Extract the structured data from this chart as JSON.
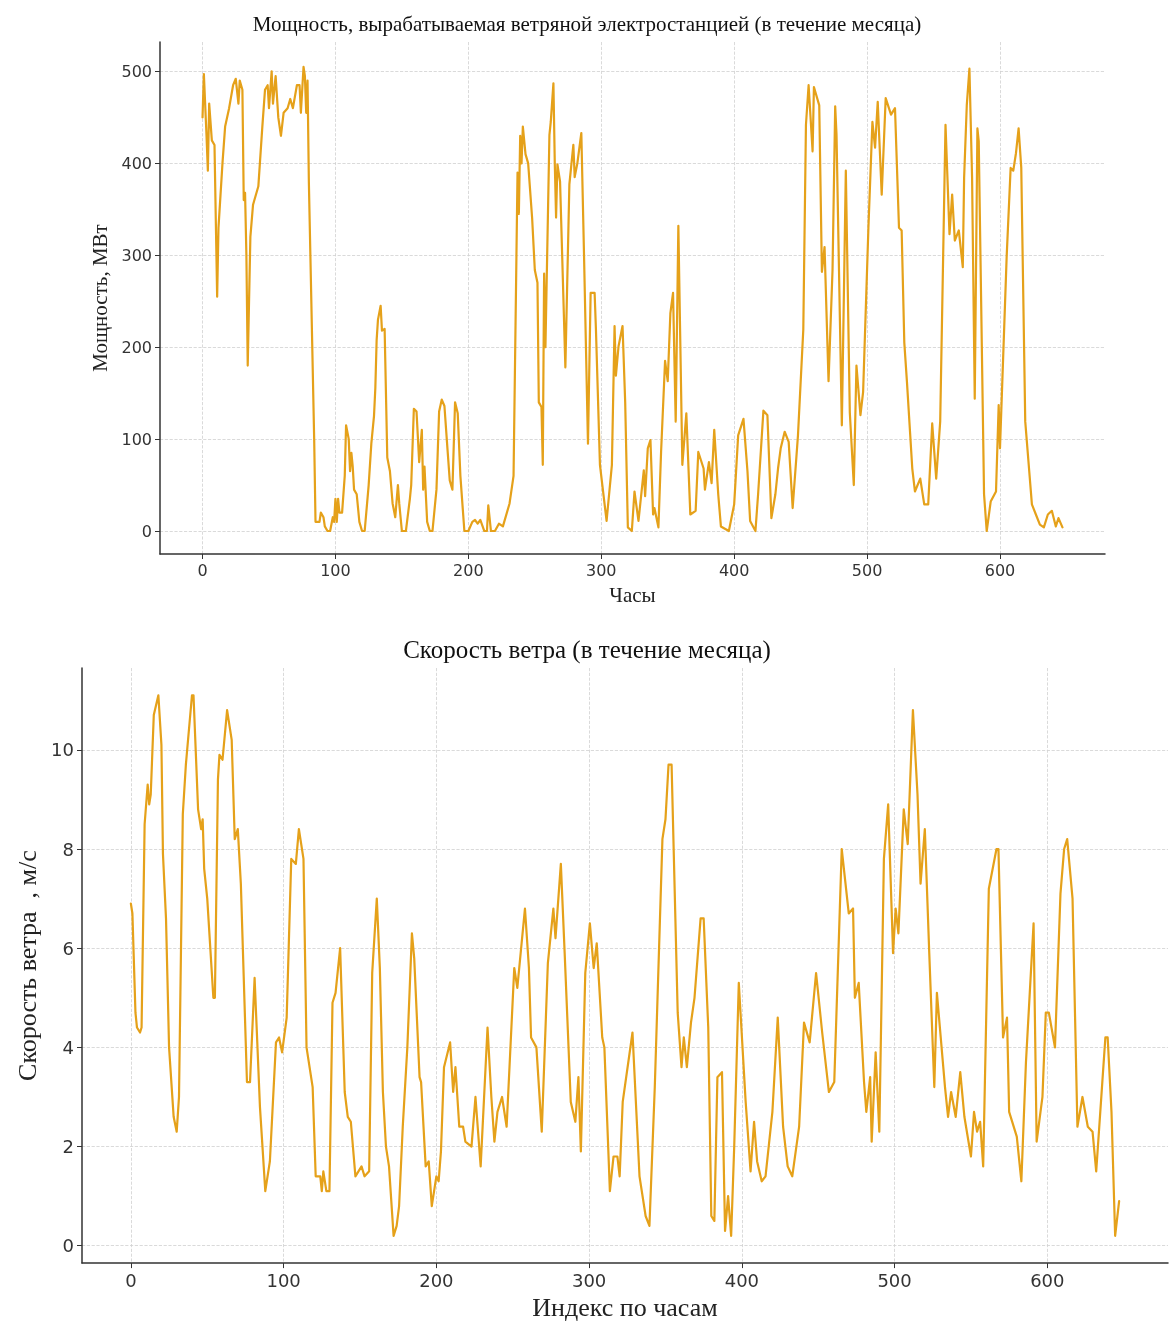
{
  "chart_data": [
    {
      "type": "line",
      "title": "Мощность, вырабатываемая ветряной электростанцией (в течение месяца)",
      "xlabel": "Часы",
      "ylabel": "Мощность, МВт",
      "color": "#e5a11a",
      "grid": true,
      "xlim": [
        -32,
        679
      ],
      "ylim": [
        -25,
        532
      ],
      "xticks": [
        0,
        100,
        200,
        300,
        400,
        500,
        600
      ],
      "yticks": [
        0,
        100,
        200,
        300,
        400,
        500
      ],
      "x": [
        0,
        1,
        3,
        4,
        5,
        7,
        9,
        11,
        12,
        15,
        17,
        20,
        23,
        25,
        27,
        28,
        30,
        31,
        32,
        33,
        34,
        36,
        38,
        42,
        45,
        47,
        49,
        50,
        52,
        53,
        55,
        57,
        59,
        61,
        64,
        66,
        68,
        71,
        73,
        74,
        76,
        77,
        78,
        79,
        80,
        84,
        85,
        88,
        89,
        91,
        92,
        94,
        96,
        98,
        99,
        100,
        101,
        102,
        103,
        105,
        107,
        108,
        110,
        111,
        112,
        113,
        114,
        116,
        118,
        120,
        122,
        125,
        127,
        129,
        130,
        131,
        132,
        134,
        135,
        137,
        139,
        141,
        143,
        145,
        147,
        148,
        150,
        153,
        156,
        157,
        159,
        161,
        163,
        165,
        166,
        167,
        169,
        171,
        173,
        176,
        178,
        180,
        182,
        184,
        186,
        188,
        190,
        192,
        194,
        197,
        200,
        203,
        205,
        207,
        209,
        212,
        214,
        215,
        217,
        220,
        223,
        226,
        231,
        234,
        237,
        238,
        239,
        240,
        241,
        243,
        245,
        248,
        250,
        252,
        253,
        255,
        256,
        257,
        258,
        261,
        262,
        264,
        265,
        266,
        267,
        269,
        273,
        276,
        279,
        280,
        282,
        285,
        287,
        290,
        292,
        295,
        296,
        299,
        304,
        308,
        310,
        311,
        313,
        316,
        318,
        320,
        323,
        325,
        328,
        332,
        333,
        335,
        337,
        339,
        340,
        343,
        345,
        348,
        350,
        352,
        354,
        356,
        358,
        361,
        364,
        367,
        371,
        373,
        377,
        378,
        381,
        383,
        385,
        388,
        390,
        396,
        400,
        403,
        407,
        410,
        412,
        416,
        418,
        422,
        425,
        428,
        431,
        433,
        435,
        438,
        441,
        444,
        448,
        452,
        454,
        456,
        459,
        460,
        464,
        466,
        468,
        471,
        474,
        476,
        477,
        481,
        484,
        487,
        490,
        492,
        495,
        497,
        501,
        504,
        506,
        508,
        511,
        514,
        518,
        521,
        524,
        526,
        528,
        530,
        534,
        536,
        540,
        543,
        546,
        549,
        552,
        555,
        559,
        562,
        564,
        566,
        569,
        572,
        573,
        575,
        577,
        579,
        581,
        583,
        584,
        588,
        590,
        593,
        597,
        599,
        600,
        605,
        608,
        610,
        612,
        614,
        616,
        619,
        622,
        624,
        627,
        630,
        633,
        636,
        639,
        642,
        644,
        647
      ],
      "values": [
        450,
        497,
        430,
        392,
        465,
        425,
        420,
        255,
        330,
        400,
        440,
        460,
        485,
        492,
        465,
        490,
        480,
        360,
        368,
        300,
        180,
        320,
        355,
        375,
        440,
        480,
        485,
        460,
        500,
        465,
        495,
        450,
        430,
        455,
        460,
        470,
        460,
        485,
        485,
        455,
        505,
        495,
        455,
        490,
        380,
        100,
        10,
        10,
        20,
        15,
        5,
        0,
        0,
        15,
        10,
        35,
        10,
        35,
        20,
        20,
        60,
        115,
        100,
        65,
        85,
        70,
        45,
        40,
        10,
        0,
        0,
        50,
        95,
        125,
        155,
        208,
        230,
        245,
        218,
        220,
        80,
        65,
        30,
        15,
        50,
        30,
        0,
        0,
        35,
        50,
        133,
        130,
        75,
        110,
        45,
        70,
        10,
        0,
        0,
        45,
        130,
        143,
        136,
        95,
        55,
        45,
        140,
        128,
        60,
        0,
        0,
        10,
        12,
        8,
        12,
        0,
        0,
        28,
        0,
        0,
        8,
        5,
        30,
        60,
        390,
        345,
        430,
        400,
        440,
        410,
        400,
        340,
        284,
        270,
        140,
        135,
        72,
        280,
        200,
        431,
        445,
        487,
        402,
        341,
        399,
        380,
        178,
        377,
        420,
        385,
        400,
        433,
        302,
        95,
        259,
        259,
        219,
        72,
        11,
        72,
        223,
        169,
        201,
        223,
        140,
        4,
        0,
        43,
        11,
        66,
        38,
        90,
        99,
        18,
        25,
        4,
        86,
        185,
        163,
        237,
        259,
        119,
        332,
        72,
        128,
        18,
        22,
        86,
        68,
        45,
        75,
        52,
        110,
        40,
        5,
        0,
        29,
        104,
        122,
        65,
        11,
        0,
        40,
        131,
        126,
        14,
        40,
        68,
        90,
        108,
        97,
        25,
        104,
        219,
        442,
        485,
        413,
        483,
        463,
        282,
        309,
        163,
        284,
        462,
        431,
        115,
        392,
        129,
        50,
        180,
        126,
        151,
        330,
        445,
        417,
        467,
        366,
        471,
        453,
        460,
        330,
        327,
        205,
        162,
        68,
        43,
        57,
        29,
        29,
        117,
        57,
        119,
        442,
        323,
        366,
        316,
        327,
        287,
        384,
        463,
        503,
        384,
        144,
        438,
        424,
        40,
        0,
        32,
        43,
        137,
        90,
        298,
        395,
        392,
        411,
        438,
        395,
        119,
        65,
        29,
        18,
        7,
        4,
        18,
        22,
        5,
        14,
        4
      ]
    },
    {
      "type": "line",
      "title": "Скорость ветра (в течение месяца)",
      "xlabel": "Индекс по часам",
      "ylabel": "Скорость ветра  , м/с",
      "color": "#e5a11a",
      "grid": true,
      "xlim": [
        -32,
        679
      ],
      "ylim": [
        -0.35,
        11.65
      ],
      "xticks": [
        0,
        100,
        200,
        300,
        400,
        500,
        600
      ],
      "yticks": [
        0,
        2,
        4,
        6,
        8,
        10
      ],
      "x": [
        0,
        1,
        3,
        4,
        6,
        7,
        9,
        11,
        12,
        13,
        15,
        18,
        20,
        21,
        23,
        25,
        28,
        30,
        31.5,
        34,
        36,
        40,
        41,
        44,
        46,
        47,
        48,
        50,
        54,
        55,
        57,
        58,
        60,
        63,
        66,
        68,
        70,
        72,
        76,
        78,
        81,
        84.5,
        88,
        91,
        95,
        97,
        99,
        102,
        105,
        108,
        110,
        113,
        115,
        119,
        121,
        124,
        125,
        126,
        128,
        130,
        132,
        134,
        137,
        140,
        142,
        144,
        147,
        151,
        153,
        156,
        158,
        161,
        163,
        165,
        167,
        169,
        172,
        174,
        175.6,
        178,
        181,
        184,
        185.5,
        189,
        190,
        193,
        195,
        197,
        200,
        201.5,
        203,
        205,
        209,
        211,
        212.5,
        215,
        217.5,
        219,
        223,
        225.6,
        229,
        233.5,
        236,
        238,
        240,
        243,
        246,
        251,
        253,
        258,
        260.6,
        262,
        265.5,
        269,
        273,
        276.6,
        278,
        281.5,
        284,
        288,
        291,
        293,
        294.6,
        297.5,
        300.5,
        303,
        305,
        308.6,
        310,
        313.6,
        316,
        318.5,
        320,
        322,
        328.4,
        333,
        337,
        339.5,
        343,
        348,
        350,
        352,
        354,
        358,
        360.5,
        362,
        364,
        366.7,
        369,
        373,
        375,
        378,
        380,
        382,
        384,
        387,
        389,
        391,
        393,
        395,
        398,
        402.5,
        405.7,
        408,
        410,
        413,
        415.5,
        420,
        423.5,
        427,
        430,
        433,
        437.5,
        440.7,
        444.4,
        448.6,
        452.6,
        457,
        460.5,
        465.4,
        470,
        472.8,
        474,
        476.5,
        480,
        481.5,
        484,
        485,
        487.6,
        490,
        493,
        495.8,
        499,
        500.7,
        502.5,
        506,
        508.6,
        512,
        515,
        517,
        519.8,
        522.7,
        526,
        527.7,
        533,
        535,
        537,
        540,
        543,
        545.7,
        550,
        552,
        554,
        556,
        558,
        561.7,
        566.7,
        568,
        571,
        573.6,
        575,
        580,
        583,
        586,
        591,
        593,
        596.8,
        599,
        601,
        605,
        608.6,
        611,
        613,
        616.5,
        619.7,
        623,
        626.5,
        629.6,
        632,
        636,
        638,
        639.5,
        642,
        644.4,
        647
      ],
      "values": [
        6.9,
        6.7,
        4.7,
        4.4,
        4.3,
        4.4,
        8.5,
        9.3,
        8.9,
        9.1,
        10.7,
        11.1,
        10.1,
        7.9,
        6.6,
        4.0,
        2.6,
        2.3,
        3.0,
        8.7,
        9.7,
        11.1,
        11.1,
        8.8,
        8.4,
        8.6,
        7.6,
        7.0,
        5.0,
        5.0,
        9.4,
        9.9,
        9.8,
        10.8,
        10.2,
        8.2,
        8.4,
        7.3,
        3.3,
        3.3,
        5.4,
        2.8,
        1.1,
        1.7,
        4.1,
        4.2,
        3.9,
        4.6,
        7.8,
        7.7,
        8.4,
        7.8,
        4.0,
        3.2,
        1.4,
        1.4,
        1.1,
        1.5,
        1.1,
        1.1,
        4.9,
        5.1,
        6.0,
        3.1,
        2.6,
        2.5,
        1.4,
        1.6,
        1.4,
        1.5,
        5.5,
        7.0,
        5.6,
        3.1,
        2.0,
        1.6,
        0.2,
        0.4,
        0.8,
        2.4,
        4.0,
        6.3,
        5.8,
        3.4,
        3.3,
        1.6,
        1.7,
        0.8,
        1.4,
        1.3,
        1.9,
        3.6,
        4.1,
        3.1,
        3.6,
        2.4,
        2.4,
        2.1,
        2.0,
        3.0,
        1.6,
        4.4,
        3.0,
        2.1,
        2.7,
        3.0,
        2.4,
        5.6,
        5.2,
        6.8,
        5.6,
        4.2,
        4.0,
        2.3,
        5.7,
        6.8,
        6.2,
        7.7,
        5.9,
        2.9,
        2.5,
        3.4,
        1.9,
        5.5,
        6.5,
        5.6,
        6.1,
        4.2,
        4.0,
        1.1,
        1.8,
        1.8,
        1.4,
        2.9,
        4.3,
        1.4,
        0.6,
        0.4,
        3.2,
        8.2,
        8.6,
        9.7,
        9.7,
        4.7,
        3.6,
        4.2,
        3.6,
        4.5,
        5.0,
        6.6,
        6.6,
        4.4,
        0.6,
        0.5,
        3.4,
        3.5,
        0.3,
        1.0,
        0.2,
        2.0,
        5.3,
        2.9,
        1.5,
        2.5,
        1.7,
        1.3,
        1.4,
        2.7,
        4.6,
        2.4,
        1.6,
        1.4,
        2.4,
        4.5,
        4.1,
        5.5,
        4.3,
        3.1,
        3.3,
        8.0,
        6.7,
        6.8,
        5.0,
        5.3,
        3.3,
        2.7,
        3.4,
        2.1,
        3.9,
        2.3,
        7.8,
        8.9,
        5.9,
        6.8,
        6.3,
        8.8,
        8.1,
        10.8,
        9.1,
        7.3,
        8.4,
        5.9,
        3.2,
        5.1,
        3.2,
        2.6,
        3.1,
        2.6,
        3.5,
        2.6,
        1.8,
        2.7,
        2.3,
        2.5,
        1.6,
        7.2,
        8.0,
        8.0,
        4.2,
        4.6,
        2.7,
        2.2,
        1.3,
        3.7,
        6.5,
        2.1,
        3.0,
        4.7,
        4.7,
        4.0,
        7.1,
        8.0,
        8.2,
        7.0,
        2.4,
        3.0,
        2.4,
        2.3,
        1.5,
        3.3,
        4.2,
        4.2,
        2.7,
        0.2,
        0.9
      ]
    }
  ]
}
